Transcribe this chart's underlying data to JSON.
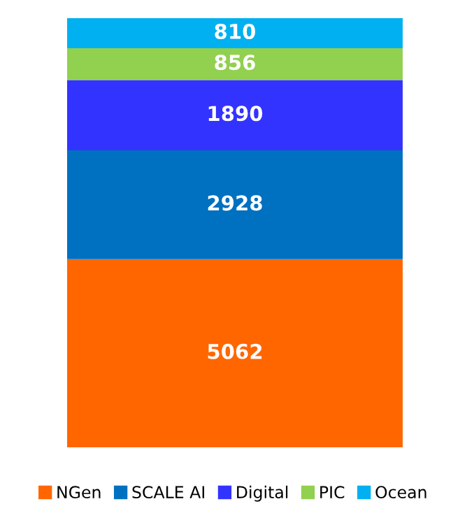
{
  "chart_data": {
    "type": "bar",
    "stacked": true,
    "categories": [
      null
    ],
    "data_labels": true,
    "legend": "bottom",
    "grid": false,
    "series": [
      {
        "name": "NGen",
        "color": "#ff6600",
        "values": [
          5062
        ]
      },
      {
        "name": "SCALE AI",
        "color": "#0070c0",
        "values": [
          2928
        ]
      },
      {
        "name": "Digital",
        "color": "#3333ff",
        "values": [
          1890
        ]
      },
      {
        "name": "PIC",
        "color": "#92d050",
        "values": [
          856
        ]
      },
      {
        "name": "Ocean",
        "color": "#00b0f0",
        "values": [
          810
        ]
      }
    ]
  }
}
